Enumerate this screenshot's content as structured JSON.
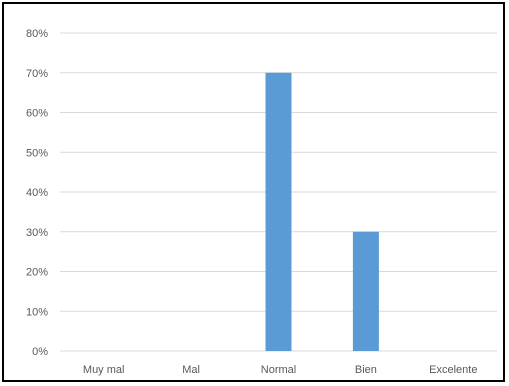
{
  "chart_data": {
    "type": "bar",
    "categories": [
      "Muy mal",
      "Mal",
      "Normal",
      "Bien",
      "Excelente"
    ],
    "values": [
      0,
      0,
      0.7,
      0.3,
      0
    ],
    "y_ticks": [
      "0%",
      "10%",
      "20%",
      "30%",
      "40%",
      "50%",
      "60%",
      "70%",
      "80%"
    ],
    "ylim": [
      0,
      0.8
    ],
    "grid": true,
    "legend": "none",
    "title": "",
    "xlabel": "",
    "ylabel": "",
    "colors": {
      "bar": "#5B9BD5",
      "grid": "#D9D9D9",
      "axis_text": "#595959"
    }
  }
}
